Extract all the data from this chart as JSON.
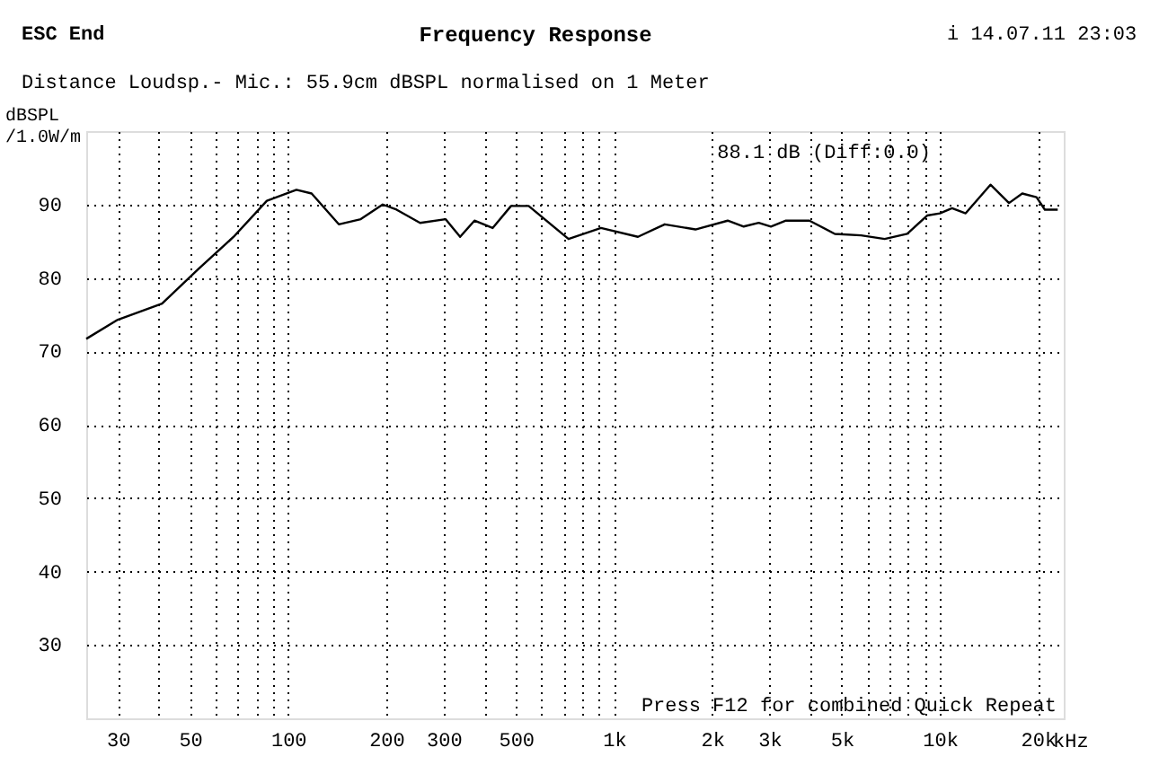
{
  "chart_data": {
    "type": "line",
    "title": "Frequency Response",
    "ylabel": "dBSPL /1.0W/m",
    "annotations": [
      "ESC End",
      "i 14.07.11 23:03",
      "Distance Loudsp.- Mic.: 55.9cm dBSPL normalised on 1 Meter",
      "88.1 dB (Diff:0.0)",
      "Press F12 for combined Quick Repeat"
    ],
    "log": "x",
    "grid": true,
    "marker": "none",
    "line_style": "solid",
    "xlim": [
      24,
      24000
    ],
    "ylim": [
      20,
      100
    ],
    "xticks": [
      {
        "value": 30,
        "label": "30"
      },
      {
        "value": 40,
        "label": null
      },
      {
        "value": 50,
        "label": "50"
      },
      {
        "value": 60,
        "label": null
      },
      {
        "value": 70,
        "label": null
      },
      {
        "value": 80,
        "label": null
      },
      {
        "value": 90,
        "label": null
      },
      {
        "value": 100,
        "label": "100"
      },
      {
        "value": 200,
        "label": "200"
      },
      {
        "value": 300,
        "label": "300"
      },
      {
        "value": 400,
        "label": null
      },
      {
        "value": 500,
        "label": "500"
      },
      {
        "value": 600,
        "label": null
      },
      {
        "value": 700,
        "label": null
      },
      {
        "value": 800,
        "label": null
      },
      {
        "value": 900,
        "label": null
      },
      {
        "value": 1000,
        "label": "1k"
      },
      {
        "value": 2000,
        "label": "2k"
      },
      {
        "value": 3000,
        "label": "3k"
      },
      {
        "value": 4000,
        "label": null
      },
      {
        "value": 5000,
        "label": "5k"
      },
      {
        "value": 6000,
        "label": null
      },
      {
        "value": 7000,
        "label": null
      },
      {
        "value": 8000,
        "label": null
      },
      {
        "value": 9000,
        "label": null
      },
      {
        "value": 10000,
        "label": "10k"
      },
      {
        "value": 20000,
        "label": "20k"
      }
    ],
    "xlabel": "kHz",
    "yticks": [
      30,
      40,
      50,
      60,
      70,
      80,
      90
    ],
    "x": [
      24,
      30,
      41,
      53,
      68,
      86,
      106,
      118,
      143,
      167,
      195,
      215,
      254,
      304,
      337,
      373,
      424,
      483,
      547,
      725,
      912,
      1184,
      1431,
      1778,
      2233,
      2500,
      2780,
      3030,
      3370,
      3980,
      4760,
      5730,
      6770,
      7940,
      9140,
      10000,
      10900,
      12000,
      14300,
      16300,
      17900,
      19800,
      21000,
      23000
    ],
    "series": [
      {
        "color": "#000000",
        "values": [
          71.7,
          74.3,
          76.5,
          81.2,
          85.6,
          90.5,
          92,
          91.5,
          87.3,
          88,
          90,
          89.3,
          87.5,
          88,
          85.6,
          87.8,
          86.8,
          89.8,
          89.8,
          85.3,
          86.8,
          85.6,
          87.3,
          86.6,
          87.8,
          87,
          87.5,
          87,
          87.8,
          87.8,
          86,
          85.8,
          85.3,
          86,
          88.5,
          88.8,
          89.5,
          88.8,
          92.7,
          90.2,
          91.5,
          91,
          89.3,
          89.3
        ]
      }
    ]
  }
}
